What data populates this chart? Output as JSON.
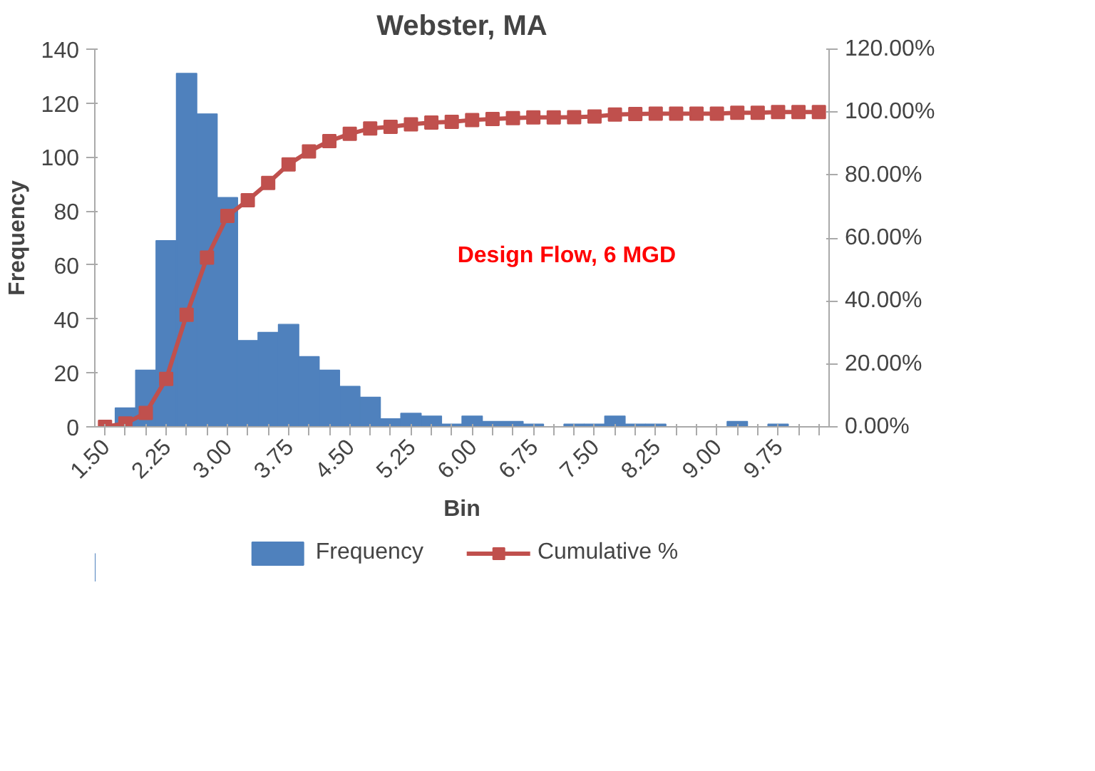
{
  "chart_data": {
    "type": "bar",
    "title": "Webster, MA",
    "xlabel": "Bin",
    "ylabel": "Frequency",
    "categories": [
      "1.50",
      null,
      null,
      "2.25",
      null,
      null,
      "3.00",
      null,
      null,
      "3.75",
      null,
      null,
      "4.50",
      null,
      null,
      "5.25",
      null,
      null,
      "6.00",
      null,
      null,
      "6.75",
      null,
      null,
      "7.50",
      null,
      null,
      "8.25",
      null,
      null,
      "9.00",
      null,
      null,
      "9.75",
      null,
      null
    ],
    "series": [
      {
        "name": "Frequency",
        "color": "#4f81bd",
        "values": [
          0,
          7,
          21,
          69,
          131,
          116,
          85,
          32,
          35,
          38,
          26,
          21,
          15,
          11,
          3,
          5,
          4,
          1,
          4,
          2,
          2,
          1,
          0,
          1,
          1,
          4,
          1,
          1,
          0,
          0,
          0,
          2,
          0,
          1,
          0,
          0
        ]
      },
      {
        "name": "Cumulative %",
        "type": "line",
        "axis": "y2",
        "color": "#c0504d",
        "marker": "square",
        "values": [
          0,
          1.1,
          4.4,
          15.2,
          35.6,
          53.8,
          67.0,
          72.0,
          77.5,
          83.4,
          87.5,
          90.8,
          93.1,
          94.8,
          95.3,
          96.1,
          96.7,
          96.9,
          97.5,
          97.8,
          98.1,
          98.3,
          98.3,
          98.4,
          98.6,
          99.2,
          99.4,
          99.5,
          99.5,
          99.5,
          99.5,
          99.8,
          99.8,
          100,
          100,
          100
        ]
      }
    ],
    "ylim": [
      0,
      140
    ],
    "yticks": [
      0,
      20,
      40,
      60,
      80,
      100,
      120,
      140
    ],
    "y2lim": [
      0,
      120
    ],
    "y2ticks": [
      {
        "value": 0,
        "label": "0.00%"
      },
      {
        "value": 20,
        "label": "20.00%"
      },
      {
        "value": 40,
        "label": "40.00%"
      },
      {
        "value": 60,
        "label": "60.00%"
      },
      {
        "value": 80,
        "label": "80.00%"
      },
      {
        "value": 100,
        "label": "100.00%"
      },
      {
        "value": 120,
        "label": "120.00%"
      }
    ],
    "annotations": [
      "Design Flow, 6 MGD"
    ],
    "legend": "bottom",
    "grid": false
  }
}
